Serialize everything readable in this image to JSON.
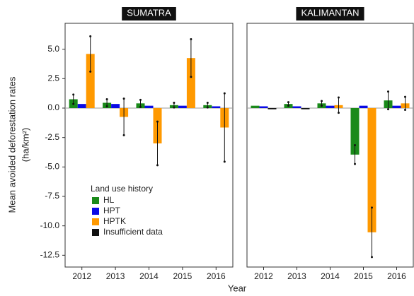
{
  "chart_data": [
    {
      "type": "bar",
      "title": "SUMATRA",
      "ylabel": [
        "Mean avoided deforestation rates",
        "(ha/km²)"
      ],
      "xlabel": "Year",
      "legend_title": "Land use history",
      "categories": [
        "2012",
        "2013",
        "2014",
        "2015",
        "2016"
      ],
      "series": [
        {
          "name": "HL",
          "color": "#1a8a1a",
          "values": [
            0.75,
            0.45,
            0.4,
            0.25,
            0.25
          ],
          "errors": [
            0.4,
            0.3,
            0.3,
            0.2,
            0.2
          ]
        },
        {
          "name": "HPT",
          "color": "#0a0ae6",
          "values": [
            0.35,
            0.35,
            0.2,
            0.2,
            0.15
          ],
          "errors": [
            null,
            null,
            null,
            null,
            null
          ]
        },
        {
          "name": "HPTK",
          "color": "#ff9900",
          "values": [
            4.6,
            -0.75,
            -3.0,
            4.25,
            -1.65
          ],
          "errors": [
            1.5,
            1.55,
            1.85,
            1.6,
            2.9
          ]
        },
        {
          "name": "Insufficient data",
          "color": "#111111",
          "values": [
            null,
            null,
            null,
            null,
            null
          ],
          "errors": [
            null,
            null,
            null,
            null,
            null
          ]
        }
      ],
      "ylim": [
        -13.5,
        7.2
      ],
      "yticks": [
        {
          "value": 5,
          "label": "5.0"
        },
        2.5,
        {
          "value": 0,
          "label": "0.0"
        },
        -2.5,
        {
          "value": -5,
          "label": "-5.0"
        },
        -7.5,
        {
          "value": -10,
          "label": "-10.0"
        },
        -12.5
      ]
    },
    {
      "type": "bar",
      "title": "KALIMANTAN",
      "categories": [
        "2012",
        "2013",
        "2014",
        "2015",
        "2016"
      ],
      "series": [
        {
          "color": "#1a8a1a",
          "values": [
            0.2,
            0.35,
            0.4,
            -3.95,
            0.65
          ],
          "errors": [
            null,
            0.15,
            0.2,
            0.8,
            0.75
          ]
        },
        {
          "color": "#0a0ae6",
          "values": [
            0.15,
            0.15,
            0.2,
            0.2,
            0.2
          ],
          "errors": [
            null,
            null,
            null,
            null,
            null
          ]
        },
        {
          "color": "#ff9900",
          "values": [
            null,
            null,
            0.25,
            -10.55,
            0.4
          ],
          "errors": [
            null,
            null,
            0.65,
            2.1,
            0.55
          ]
        },
        {
          "color": "#111111",
          "values": [
            -0.1,
            -0.1,
            null,
            null,
            null
          ],
          "errors": [
            null,
            null,
            null,
            null,
            null
          ]
        }
      ],
      "ylim": [
        -13.5,
        7.2
      ]
    }
  ]
}
